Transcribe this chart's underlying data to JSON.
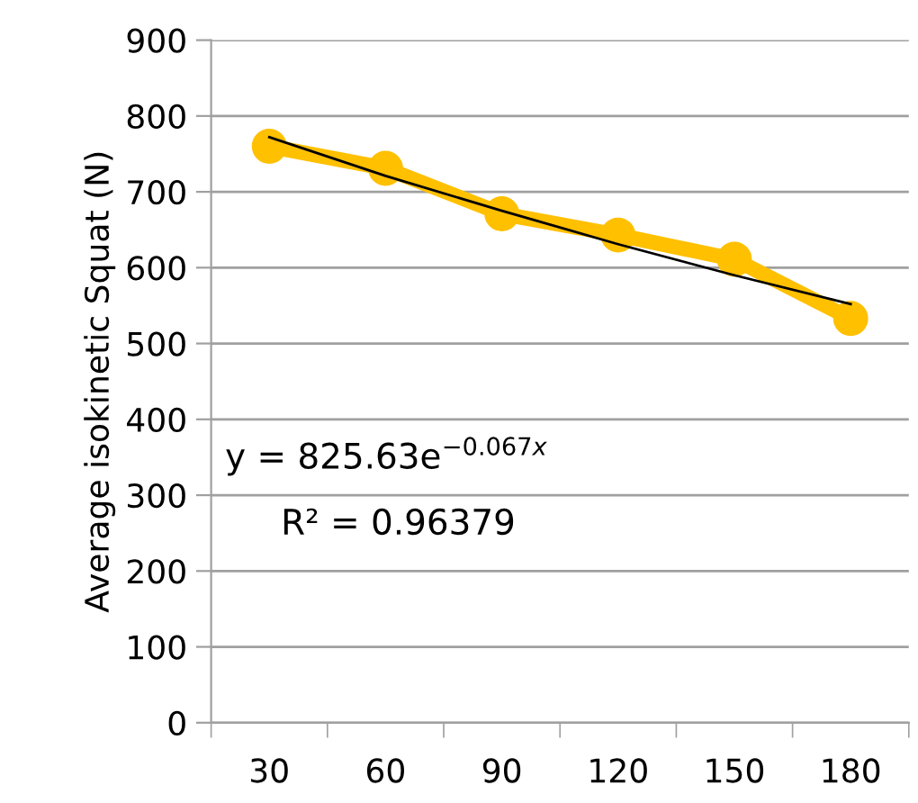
{
  "chart_data": {
    "type": "line",
    "ylabel": "Average isokinetic Squat (N)",
    "categories": [
      "30",
      "60",
      "90",
      "120",
      "150",
      "180"
    ],
    "series": [
      {
        "color": "#ffc000",
        "marker": "circle",
        "values": [
          760,
          731,
          671,
          643,
          611,
          533
        ]
      },
      {
        "color": "#000000",
        "marker": "none",
        "values": [
          772,
          721,
          675,
          631,
          590,
          552
        ]
      }
    ],
    "ylim": [
      0,
      900
    ],
    "yticks": [
      0,
      100,
      200,
      300,
      400,
      500,
      600,
      700,
      800,
      900
    ],
    "grid": "y",
    "legend": false,
    "annotations": [
      "y = 825.63e$^{−0.067x}$",
      "R² = 0.96379"
    ]
  }
}
